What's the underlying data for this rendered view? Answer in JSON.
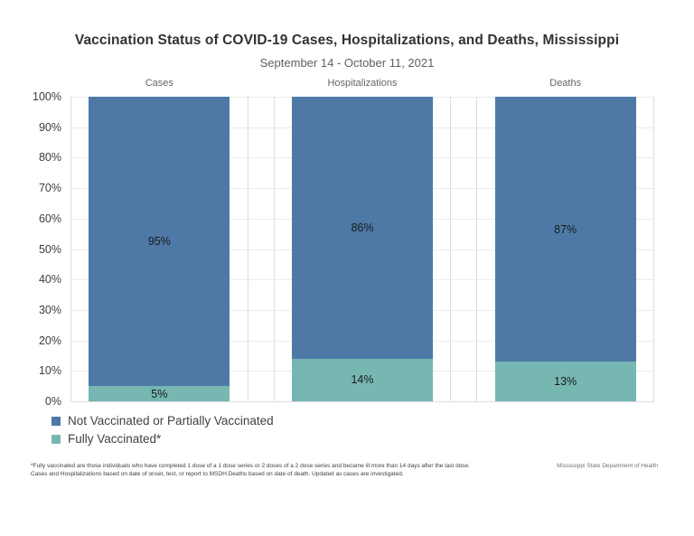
{
  "chart_data": {
    "type": "bar",
    "stacked": true,
    "title": "Vaccination Status of COVID-19 Cases, Hospitalizations, and Deaths, Mississippi",
    "subtitle": "September 14 - October 11, 2021",
    "categories": [
      "Cases",
      "Hospitalizations",
      "Deaths"
    ],
    "series": [
      {
        "name": "Not Vaccinated or Partially Vaccinated",
        "color": "#4e79a7",
        "values": [
          95,
          86,
          87
        ]
      },
      {
        "name": "Fully Vaccinated*",
        "color": "#76b7b2",
        "values": [
          5,
          14,
          13
        ]
      }
    ],
    "value_label_format": "{v}%",
    "ylim": [
      0,
      100
    ],
    "ytick_labels": [
      "100%",
      "90%",
      "80%",
      "70%",
      "60%",
      "50%",
      "40%",
      "30%",
      "20%",
      "10%",
      "0%"
    ],
    "grid": true,
    "legend_position": "bottom-left"
  },
  "footnote": {
    "line1": "*Fully vaccinated are those individuals who have completed 1 dose of a 1 dose series or 2 doses of a 2 dose series and became ill more than 14 days after the last dose.",
    "line2": "Cases and Hospitalizations based on date of onset, test, or report to MSDH.Deaths based on date of death. Updated as cases are investigated."
  },
  "attribution": "Mississippi State Department of Health"
}
